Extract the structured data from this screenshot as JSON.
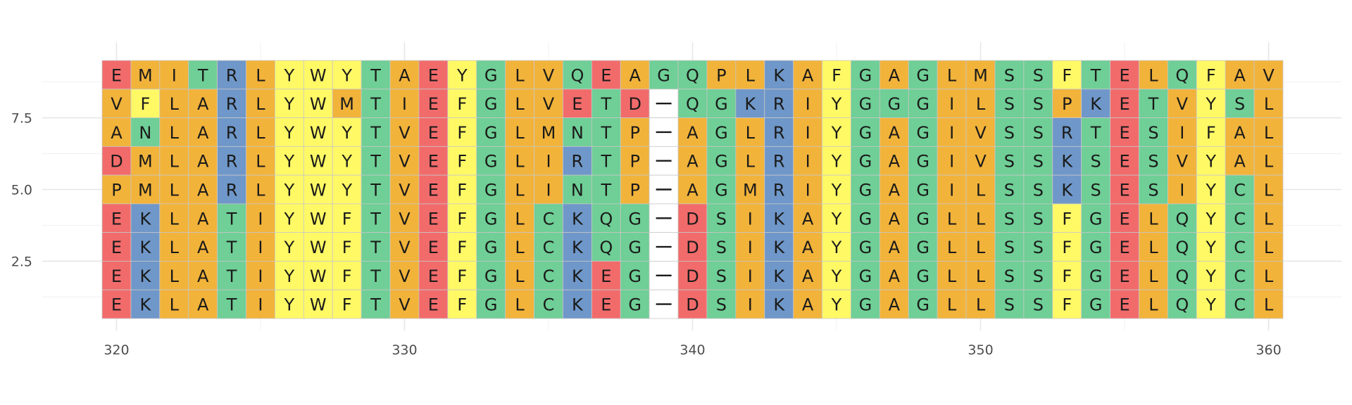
{
  "chart_data": {
    "type": "heatmap",
    "title": "",
    "xlabel": "",
    "ylabel": "",
    "x_start": 320,
    "x_ticks": [
      320,
      330,
      340,
      350,
      360
    ],
    "y_ticks": [
      2.5,
      5.0,
      7.5
    ],
    "y_tick_labels": [
      "2.5",
      "5.0",
      "7.5"
    ],
    "xlim": [
      319.5,
      360.5
    ],
    "ylim": [
      0.5,
      9.5
    ],
    "grid": true,
    "colors": {
      "hydrophobic": "#f2b33a",
      "polar": "#fff966",
      "acidic": "#f26b6b",
      "basic": "#6f97c9",
      "amide": "#6fcf96",
      "gap": "#ffffff"
    },
    "residue_groups": {
      "hydrophobic": [
        "A",
        "V",
        "L",
        "I",
        "M",
        "P"
      ],
      "polar": [
        "Y",
        "W",
        "F"
      ],
      "acidic": [
        "D",
        "E"
      ],
      "basic": [
        "R",
        "K",
        "H"
      ],
      "amide": [
        "T",
        "Q",
        "N",
        "S",
        "C",
        "G"
      ],
      "gap": [
        "-"
      ]
    },
    "overrides": [
      {
        "row": 9,
        "col": 11,
        "group": "hydrophobic"
      },
      {
        "row": 9,
        "col": 21,
        "group": "hydrophobic"
      },
      {
        "row": 9,
        "col": 29,
        "group": "hydrophobic"
      },
      {
        "row": 9,
        "col": 30,
        "group": "hydrophobic"
      },
      {
        "row": 9,
        "col": 31,
        "group": "hydrophobic"
      },
      {
        "row": 9,
        "col": 32,
        "group": "hydrophobic"
      },
      {
        "row": 8,
        "col": 8,
        "group": "hydrophobic"
      },
      {
        "row": 8,
        "col": 17,
        "group": "hydrophobic"
      },
      {
        "row": 8,
        "col": 29,
        "group": "hydrophobic"
      },
      {
        "row": 8,
        "col": 30,
        "group": "hydrophobic"
      },
      {
        "row": 8,
        "col": 31,
        "group": "hydrophobic"
      },
      {
        "row": 8,
        "col": 37,
        "group": "hydrophobic"
      },
      {
        "row": 8,
        "col": 38,
        "group": "hydrophobic"
      },
      {
        "row": 7,
        "col": 17,
        "group": "hydrophobic"
      },
      {
        "row": 7,
        "col": 27,
        "group": "hydrophobic"
      },
      {
        "row": 7,
        "col": 29,
        "group": "hydrophobic"
      },
      {
        "row": 7,
        "col": 31,
        "group": "hydrophobic"
      },
      {
        "row": 7,
        "col": 36,
        "group": "hydrophobic"
      },
      {
        "row": 6,
        "col": 17,
        "group": "hydrophobic"
      },
      {
        "row": 6,
        "col": 27,
        "group": "hydrophobic"
      },
      {
        "row": 6,
        "col": 29,
        "group": "hydrophobic"
      },
      {
        "row": 6,
        "col": 31,
        "group": "hydrophobic"
      },
      {
        "row": 6,
        "col": 36,
        "group": "hydrophobic"
      },
      {
        "row": 5,
        "col": 17,
        "group": "hydrophobic"
      },
      {
        "row": 5,
        "col": 18,
        "group": "hydrophobic"
      },
      {
        "row": 5,
        "col": 29,
        "group": "hydrophobic"
      },
      {
        "row": 5,
        "col": 31,
        "group": "hydrophobic"
      },
      {
        "row": 5,
        "col": 36,
        "group": "hydrophobic"
      },
      {
        "row": 4,
        "col": 29,
        "group": "hydrophobic"
      },
      {
        "row": 4,
        "col": 31,
        "group": "hydrophobic"
      },
      {
        "row": 4,
        "col": 35,
        "group": "hydrophobic"
      },
      {
        "row": 3,
        "col": 29,
        "group": "hydrophobic"
      },
      {
        "row": 3,
        "col": 31,
        "group": "hydrophobic"
      },
      {
        "row": 3,
        "col": 35,
        "group": "hydrophobic"
      },
      {
        "row": 2,
        "col": 29,
        "group": "hydrophobic"
      },
      {
        "row": 2,
        "col": 31,
        "group": "hydrophobic"
      },
      {
        "row": 2,
        "col": 35,
        "group": "hydrophobic"
      },
      {
        "row": 1,
        "col": 29,
        "group": "hydrophobic"
      },
      {
        "row": 1,
        "col": 31,
        "group": "hydrophobic"
      },
      {
        "row": 1,
        "col": 35,
        "group": "hydrophobic"
      }
    ],
    "rows": [
      {
        "y": 9,
        "sequence": "EMITRLYWYTAEYGLVQEAGQPLKAFGAGLMSSFTELQFAV"
      },
      {
        "y": 8,
        "sequence": "VFLARLYWMTIEFGLVETD-QGKRIYGGGILSSPKETVYSL"
      },
      {
        "y": 7,
        "sequence": "ANLARLYWYTVEFGLMNTP-AGLRIYGAGIVSSRTESIFAL"
      },
      {
        "y": 6,
        "sequence": "DMLARLYWYTVEFGLIRTP-AGLRIYGAGIVSSKSESVYAL"
      },
      {
        "y": 5,
        "sequence": "PMLARLYWYTVEFGLINTP-AGMRIYGAGILSSKSESIYCL"
      },
      {
        "y": 4,
        "sequence": "EKLATIYWFTVEFGLCKQG-DSIKAYGAGLLSSFGELQYCL"
      },
      {
        "y": 3,
        "sequence": "EKLATIYWFTVEFGLCKQG-DSIKAYGAGLLSSFGELQYCL"
      },
      {
        "y": 2,
        "sequence": "EKLATIYWFTVEFGLCKEG-DSIKAYGAGLLSSFGELQYCL"
      },
      {
        "y": 1,
        "sequence": "EKLATIYWFTVEFGLCKEG-DSIKAYGAGLLSSFGELQYCL"
      }
    ]
  }
}
